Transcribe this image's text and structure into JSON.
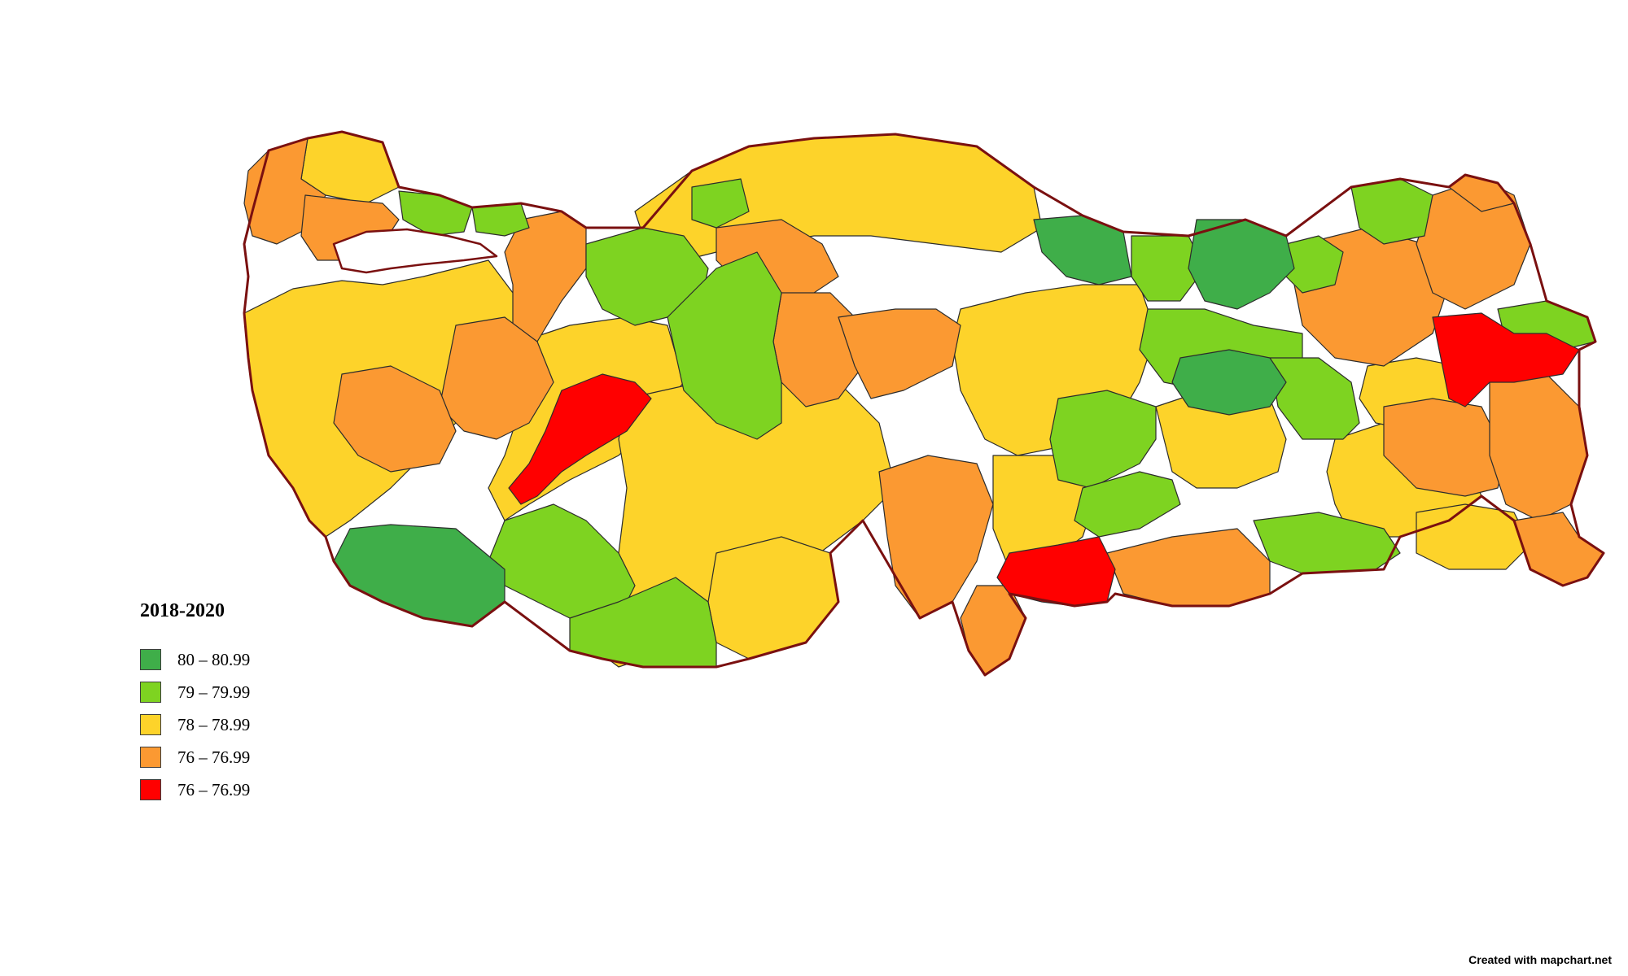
{
  "legend": {
    "title": "2018-2020",
    "items": [
      {
        "label": "80 – 80.99",
        "color": "#3fae49"
      },
      {
        "label": "79 – 79.99",
        "color": "#7ed321"
      },
      {
        "label": "78 – 78.99",
        "color": "#fdd32a"
      },
      {
        "label": "76 – 76.99",
        "color": "#fb9932"
      },
      {
        "label": "76 – 76.99",
        "color": "#ff0000"
      }
    ]
  },
  "credit": "Created with mapchart.net",
  "colors": {
    "dark_green": "#3fae49",
    "light_green": "#7ed321",
    "yellow": "#fdd32a",
    "orange": "#fb9932",
    "red": "#ff0000",
    "border": "#7a1010"
  }
}
